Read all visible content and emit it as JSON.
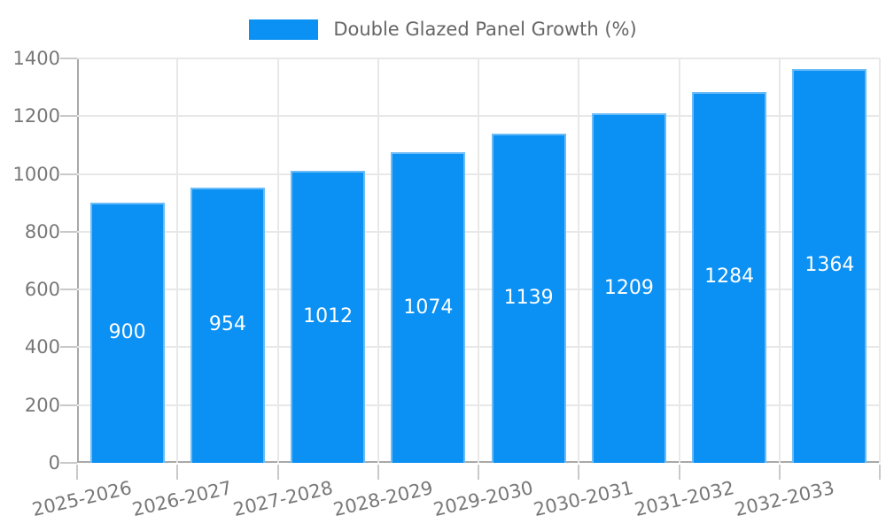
{
  "chart_data": {
    "type": "bar",
    "title": "",
    "legend": "Double Glazed Panel Growth (%)",
    "legend_position": "top-center",
    "categories": [
      "2025-2026",
      "2026-2027",
      "2027-2028",
      "2028-2029",
      "2029-2030",
      "2030-2031",
      "2031-2032",
      "2032-2033"
    ],
    "values": [
      900,
      954,
      1012,
      1074,
      1139,
      1209,
      1284,
      1364
    ],
    "value_labels": [
      "900",
      "954",
      "1012",
      "1074",
      "1139",
      "1209",
      "1284",
      "1364"
    ],
    "xlabel": "",
    "ylabel": "",
    "ylim": [
      0,
      1400
    ],
    "yticks": [
      0,
      200,
      400,
      600,
      800,
      1000,
      1200,
      1400
    ],
    "grid": "horizontal and vertical light gray gridlines",
    "x_label_rotation_deg": -13,
    "colors": {
      "bar": "#0b90f3",
      "bar_border": "rgba(255,255,255,0.4)",
      "value_label_text": "#ffffff",
      "gridline": "#e8e8e8",
      "axis_line": "#a8a8a8",
      "tick_mark": "#c9c9c9",
      "tick_text": "#777777",
      "legend_text": "#666666",
      "background": "#ffffff"
    }
  }
}
